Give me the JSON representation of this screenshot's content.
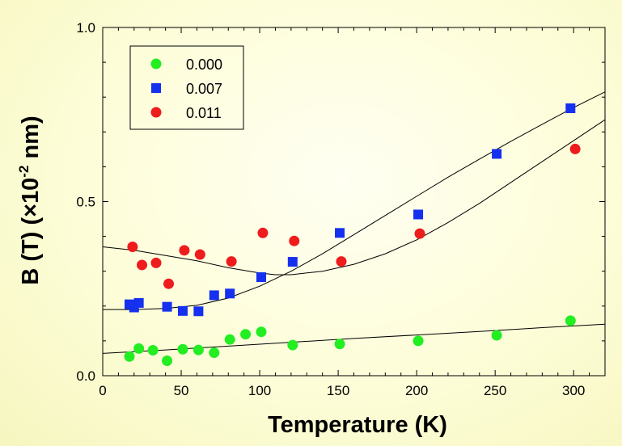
{
  "chart_data": {
    "type": "scatter",
    "xlabel": "Temperature (K)",
    "ylabel_main": "B (T)  (×10",
    "ylabel_exp": "-2",
    "ylabel_unit": " nm)",
    "xlim": [
      0,
      320
    ],
    "ylim": [
      0,
      1.0
    ],
    "x_ticks": [
      0,
      50,
      100,
      150,
      200,
      250,
      300
    ],
    "x_tick_labels": [
      "0",
      "50",
      "100",
      "150",
      "200",
      "250",
      "300"
    ],
    "y_ticks": [
      0,
      0.5,
      1.0
    ],
    "y_tick_labels": [
      "0.0",
      "0.5",
      "1.0"
    ],
    "grid": false,
    "legend_position": "top-left",
    "series": [
      {
        "name": "0.000",
        "marker": "circle",
        "color": "#22ee22",
        "x": [
          17,
          23,
          32,
          41,
          51,
          61,
          71,
          81,
          91,
          101,
          121,
          151,
          201,
          251,
          298
        ],
        "y": [
          0.055,
          0.078,
          0.073,
          0.043,
          0.076,
          0.074,
          0.066,
          0.104,
          0.119,
          0.126,
          0.088,
          0.091,
          0.1,
          0.116,
          0.158
        ]
      },
      {
        "name": "0.007",
        "marker": "square",
        "color": "#1530ee",
        "x": [
          17,
          20,
          23,
          41,
          51,
          61,
          71,
          81,
          101,
          121,
          151,
          201,
          251,
          298
        ],
        "y": [
          0.205,
          0.196,
          0.209,
          0.198,
          0.186,
          0.185,
          0.231,
          0.236,
          0.283,
          0.327,
          0.41,
          0.463,
          0.637,
          0.768
        ]
      },
      {
        "name": "0.011",
        "marker": "circle",
        "color": "#ee1c1c",
        "x": [
          19,
          25,
          34,
          42,
          52,
          62,
          82,
          102,
          122,
          152,
          202,
          301
        ],
        "y": [
          0.37,
          0.318,
          0.324,
          0.264,
          0.36,
          0.348,
          0.328,
          0.41,
          0.387,
          0.328,
          0.408,
          0.651
        ]
      }
    ],
    "fit_curves": [
      {
        "for": "0.000",
        "x": [
          0,
          40,
          80,
          120,
          160,
          200,
          240,
          280,
          320
        ],
        "y": [
          0.064,
          0.074,
          0.085,
          0.096,
          0.107,
          0.117,
          0.127,
          0.138,
          0.148
        ]
      },
      {
        "for": "0.007",
        "x": [
          0,
          20,
          40,
          60,
          80,
          100,
          120,
          140,
          160,
          180,
          200,
          220,
          240,
          260,
          280,
          300,
          320
        ],
        "y": [
          0.19,
          0.19,
          0.193,
          0.202,
          0.223,
          0.257,
          0.3,
          0.35,
          0.405,
          0.46,
          0.515,
          0.57,
          0.622,
          0.673,
          0.722,
          0.77,
          0.815
        ]
      },
      {
        "for": "0.011",
        "x": [
          0,
          20,
          40,
          60,
          80,
          100,
          110,
          120,
          140,
          160,
          180,
          200,
          220,
          240,
          260,
          280,
          300,
          320
        ],
        "y": [
          0.37,
          0.36,
          0.345,
          0.33,
          0.31,
          0.295,
          0.29,
          0.29,
          0.3,
          0.32,
          0.35,
          0.39,
          0.44,
          0.495,
          0.555,
          0.615,
          0.675,
          0.735
        ]
      }
    ]
  }
}
